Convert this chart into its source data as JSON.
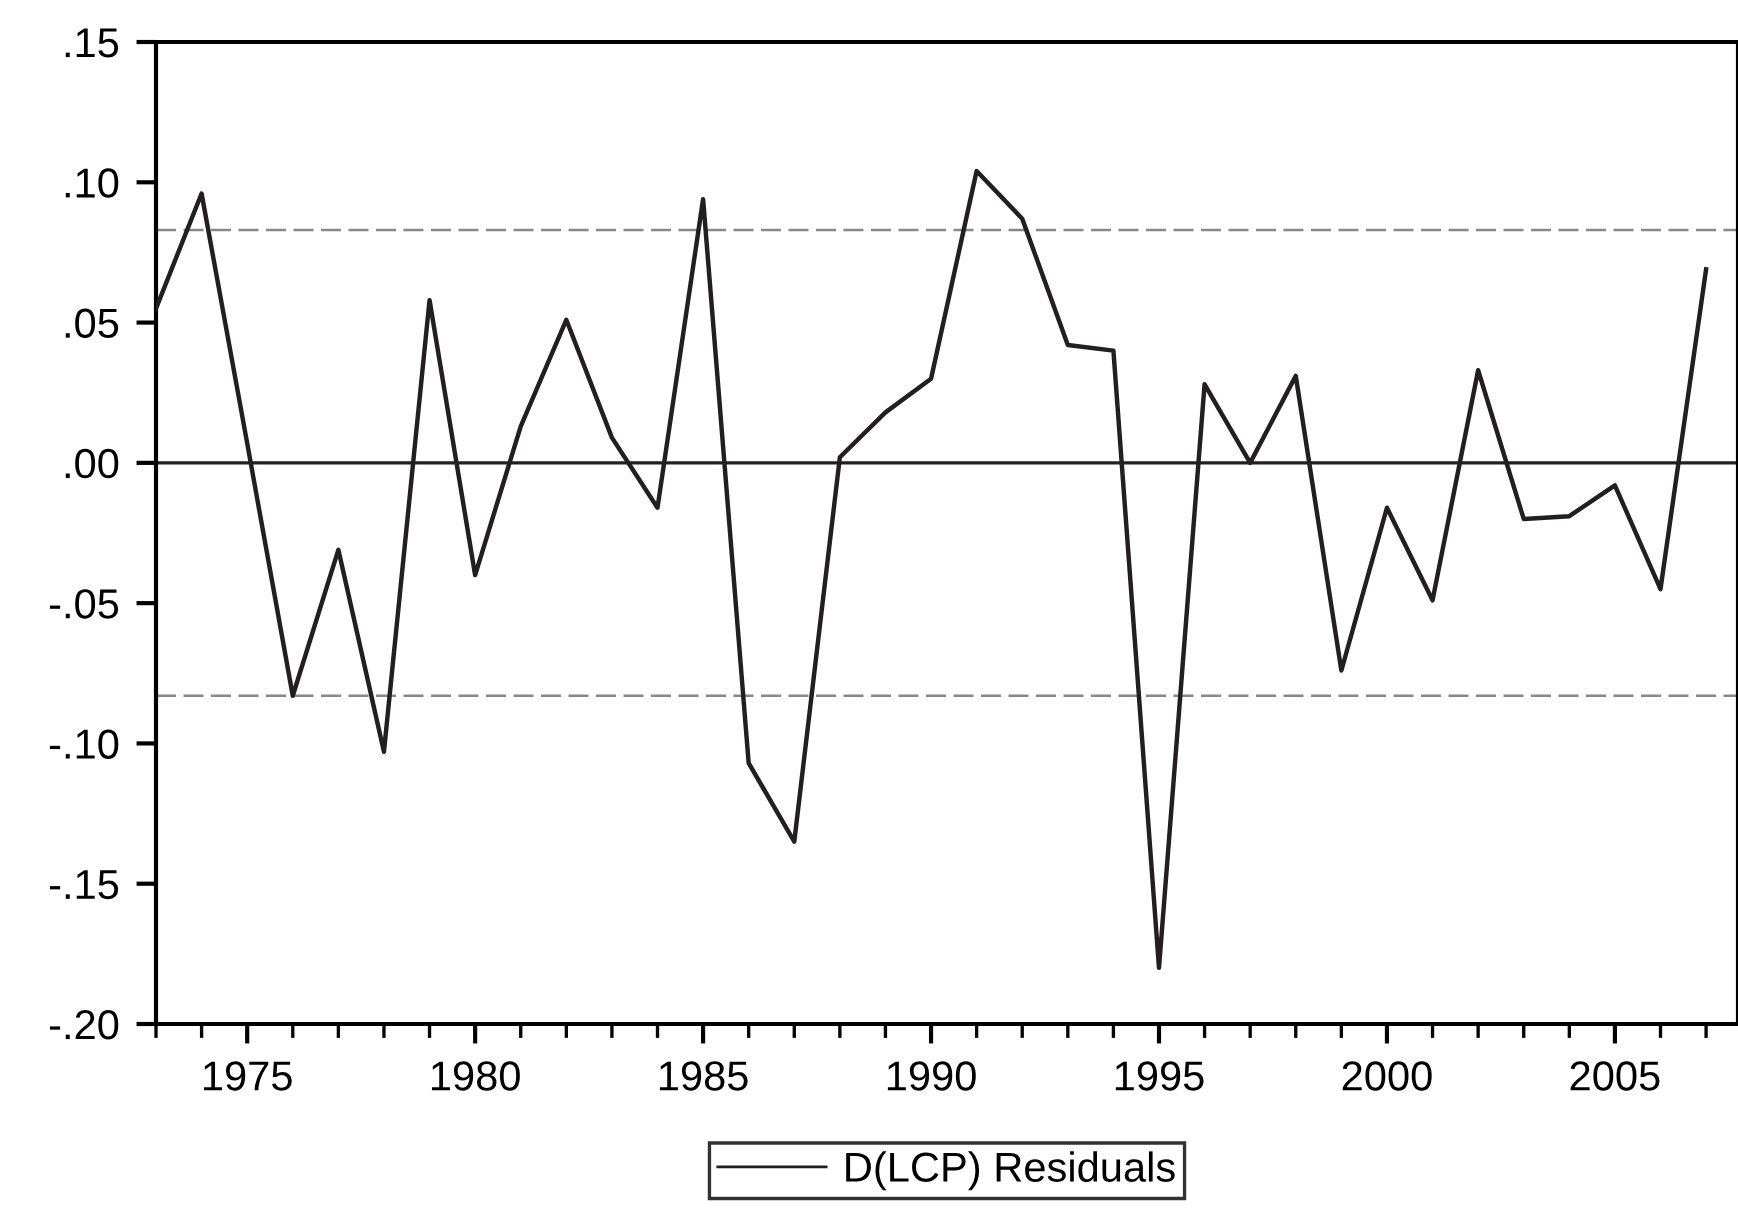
{
  "chart_data": {
    "type": "line",
    "x": [
      1973,
      1974,
      1975,
      1976,
      1977,
      1978,
      1979,
      1980,
      1981,
      1982,
      1983,
      1984,
      1985,
      1986,
      1987,
      1988,
      1989,
      1990,
      1991,
      1992,
      1993,
      1994,
      1995,
      1996,
      1997,
      1998,
      1999,
      2000,
      2001,
      2002,
      2003,
      2004,
      2005,
      2006,
      2007
    ],
    "series": [
      {
        "name": "D(LCP) Residuals",
        "color": "#231f20",
        "values": [
          0.055,
          0.096,
          0.007,
          -0.083,
          -0.031,
          -0.103,
          0.058,
          -0.04,
          0.013,
          0.051,
          0.009,
          -0.016,
          0.094,
          -0.107,
          -0.135,
          0.002,
          0.018,
          0.03,
          0.104,
          0.087,
          0.042,
          0.04,
          -0.18,
          0.028,
          0.0,
          0.031,
          -0.074,
          -0.016,
          -0.049,
          0.033,
          -0.02,
          -0.019,
          -0.008,
          -0.045,
          0.069
        ]
      }
    ],
    "xlim": [
      1973,
      2007.7
    ],
    "xticks": [
      1975,
      1980,
      1985,
      1990,
      1995,
      2000,
      2005
    ],
    "ylim": [
      -0.2,
      0.15
    ],
    "yticks": [
      {
        "value": -0.2,
        "label": "-.20"
      },
      {
        "value": -0.15,
        "label": "-.15"
      },
      {
        "value": -0.1,
        "label": "-.10"
      },
      {
        "value": -0.05,
        "label": "-.05"
      },
      {
        "value": 0,
        "label": ".00"
      },
      {
        "value": 0.05,
        "label": ".05"
      },
      {
        "value": 0.1,
        "label": ".10"
      },
      {
        "value": 0.15,
        "label": ".15"
      }
    ],
    "ref_lines": [
      {
        "axis": "y",
        "value": 0,
        "color": "#231f20",
        "line_style": "solid"
      },
      {
        "axis": "y",
        "value": 0.083,
        "color": "#888888",
        "line_style": "dashed"
      },
      {
        "axis": "y",
        "value": -0.083,
        "color": "#888888",
        "line_style": "dashed"
      }
    ],
    "grid": false,
    "legend": "bottom",
    "marker": "none",
    "line_style": "solid"
  }
}
